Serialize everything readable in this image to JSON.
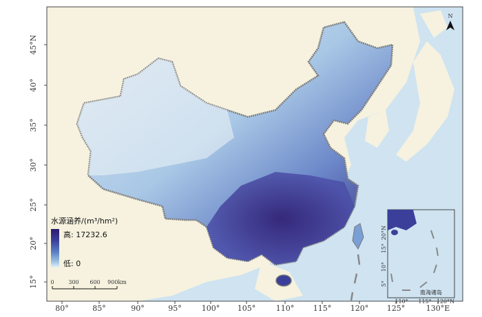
{
  "map": {
    "north_arrow": "N",
    "lon_ticks": [
      "80°",
      "85°",
      "90°",
      "95°",
      "100°",
      "105°",
      "110°",
      "115°",
      "120°",
      "125°",
      "130°E"
    ],
    "lat_ticks": [
      "45°N",
      "40°",
      "35°",
      "30°",
      "25°",
      "20°",
      "15°"
    ],
    "legend": {
      "title": "水源涵养/(m³/hm²)",
      "high_label": "高: 17232.6",
      "low_label": "低: 0",
      "gradient": [
        "#2d1a6e",
        "#3b3f9a",
        "#5a7fc4",
        "#9ec3e2",
        "#e6f2f8"
      ]
    },
    "scalebar": {
      "labels": [
        "0",
        "300",
        "600",
        "900km"
      ]
    },
    "inset": {
      "label": "南海诸岛",
      "lat_ticks": [
        "20°N",
        "15°",
        "10°",
        "5°"
      ],
      "lon_ticks": [
        "110°",
        "115°",
        "120°N"
      ]
    },
    "colors": {
      "sea": "#cfe3f1",
      "land_bg": "#f6f2df",
      "border": "#777777"
    }
  }
}
